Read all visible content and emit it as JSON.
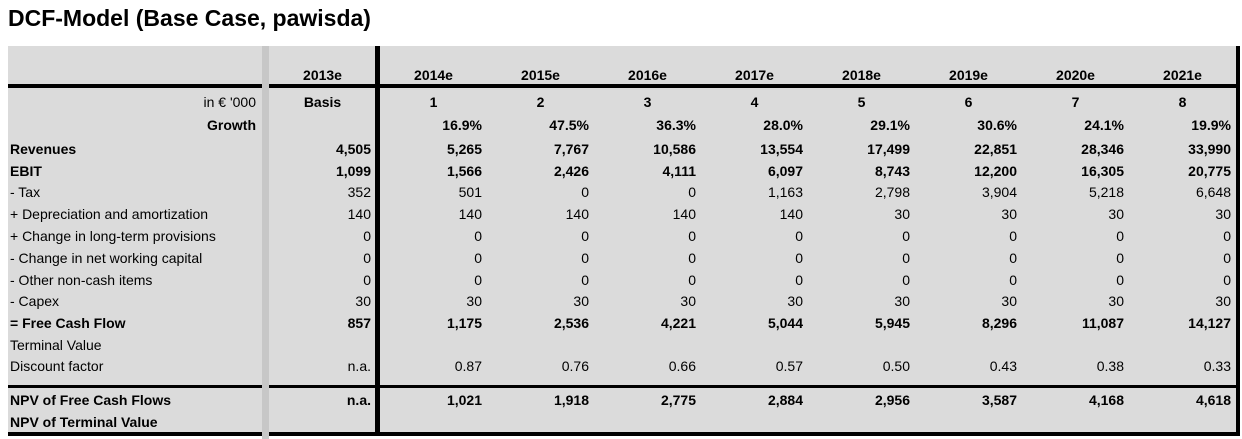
{
  "title": "DCF-Model (Base Case, pawisda)",
  "table": {
    "unit_label": "in € '000",
    "columns": [
      "2013e",
      "2014e",
      "2015e",
      "2016e",
      "2017e",
      "2018e",
      "2019e",
      "2020e",
      "2021e"
    ],
    "period_row": [
      "Basis",
      "1",
      "2",
      "3",
      "4",
      "5",
      "6",
      "7",
      "8"
    ],
    "rows": [
      {
        "label": "Growth",
        "bold": true,
        "label_align": "right",
        "values": [
          "",
          "16.9%",
          "47.5%",
          "36.3%",
          "28.0%",
          "29.1%",
          "30.6%",
          "24.1%",
          "19.9%"
        ]
      },
      {
        "label": "Revenues",
        "bold": true,
        "values": [
          "4,505",
          "5,265",
          "7,767",
          "10,586",
          "13,554",
          "17,499",
          "22,851",
          "28,346",
          "33,990"
        ]
      },
      {
        "label": "EBIT",
        "bold": true,
        "values": [
          "1,099",
          "1,566",
          "2,426",
          "4,111",
          "6,097",
          "8,743",
          "12,200",
          "16,305",
          "20,775"
        ]
      },
      {
        "label": "- Tax",
        "bold": false,
        "values": [
          "352",
          "501",
          "0",
          "0",
          "1,163",
          "2,798",
          "3,904",
          "5,218",
          "6,648"
        ]
      },
      {
        "label": "+ Depreciation and amortization",
        "bold": false,
        "values": [
          "140",
          "140",
          "140",
          "140",
          "140",
          "30",
          "30",
          "30",
          "30"
        ]
      },
      {
        "label": "+ Change in long-term provisions",
        "bold": false,
        "values": [
          "0",
          "0",
          "0",
          "0",
          "0",
          "0",
          "0",
          "0",
          "0"
        ]
      },
      {
        "label": "- Change in net working capital",
        "bold": false,
        "values": [
          "0",
          "0",
          "0",
          "0",
          "0",
          "0",
          "0",
          "0",
          "0"
        ]
      },
      {
        "label": "- Other non-cash items",
        "bold": false,
        "values": [
          "0",
          "0",
          "0",
          "0",
          "0",
          "0",
          "0",
          "0",
          "0"
        ]
      },
      {
        "label": "- Capex",
        "bold": false,
        "values": [
          "30",
          "30",
          "30",
          "30",
          "30",
          "30",
          "30",
          "30",
          "30"
        ]
      },
      {
        "label": "= Free Cash Flow",
        "bold": true,
        "values": [
          "857",
          "1,175",
          "2,536",
          "4,221",
          "5,044",
          "5,945",
          "8,296",
          "11,087",
          "14,127"
        ]
      },
      {
        "label": "Terminal Value",
        "bold": false,
        "values": [
          "",
          "",
          "",
          "",
          "",
          "",
          "",
          "",
          ""
        ]
      },
      {
        "label": "Discount factor",
        "bold": false,
        "values": [
          "n.a.",
          "0.87",
          "0.76",
          "0.66",
          "0.57",
          "0.50",
          "0.43",
          "0.38",
          "0.33"
        ]
      }
    ],
    "footer_rows": [
      {
        "label": "NPV of Free Cash Flows",
        "bold": true,
        "values": [
          "n.a.",
          "1,021",
          "1,918",
          "2,775",
          "2,884",
          "2,956",
          "3,587",
          "4,168",
          "4,618"
        ]
      },
      {
        "label": "NPV of Terminal Value",
        "bold": true,
        "values": [
          "",
          "",
          "",
          "",
          "",
          "",
          "",
          "",
          ""
        ]
      }
    ]
  },
  "colors": {
    "sheet_background": "#DBDBDB",
    "separator_band": "#C7C7C7",
    "border": "#000000",
    "text": "#000000"
  }
}
